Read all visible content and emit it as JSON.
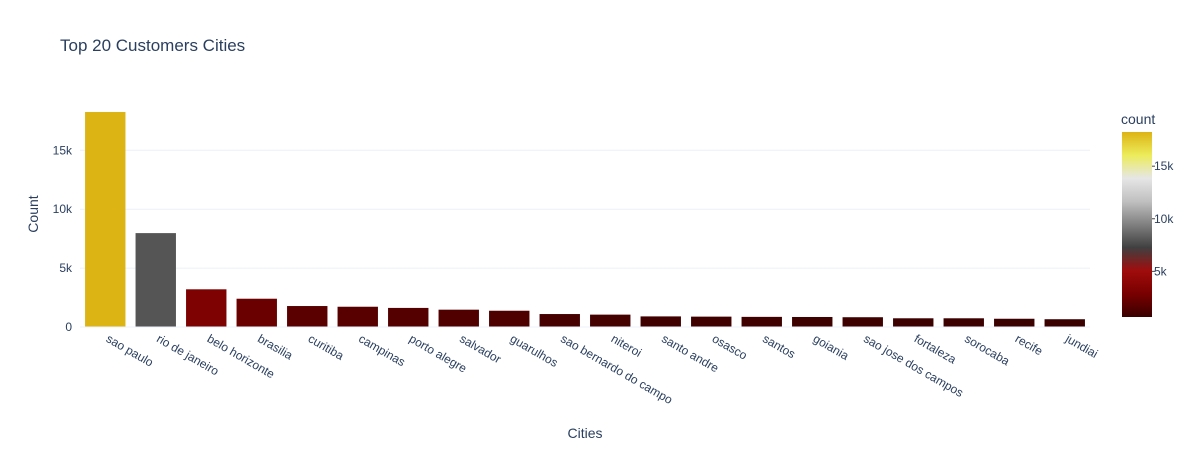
{
  "chart_data": {
    "type": "bar",
    "title": "Top 20 Customers Cities",
    "xlabel": "Cities",
    "ylabel": "Count",
    "categories": [
      "sao paulo",
      "rio de janeiro",
      "belo horizonte",
      "brasilia",
      "curitiba",
      "campinas",
      "porto alegre",
      "salvador",
      "guarulhos",
      "sao bernardo do campo",
      "niteroi",
      "santo andre",
      "osasco",
      "santos",
      "goiania",
      "sao jose dos campos",
      "fortaleza",
      "sorocaba",
      "recife",
      "jundiai"
    ],
    "values": [
      18250,
      7970,
      3200,
      2400,
      1780,
      1720,
      1620,
      1470,
      1380,
      1100,
      1050,
      900,
      880,
      860,
      850,
      830,
      740,
      740,
      700,
      660
    ],
    "ylim": [
      0,
      18250
    ],
    "y_ticks": [
      0,
      5000,
      10000,
      15000
    ],
    "y_tick_labels": [
      "0",
      "5k",
      "10k",
      "15k"
    ],
    "grid": true,
    "colorbar": {
      "title": "count",
      "range": [
        660,
        18250
      ],
      "ticks": [
        5000,
        10000,
        15000
      ],
      "tick_labels": [
        "5k",
        "10k",
        "15k"
      ],
      "colorscale": [
        "#3a0000",
        "#780000",
        "#a00c0c",
        "#404040",
        "#808080",
        "#c0c0c0",
        "#e6e6e6",
        "#ecec5a",
        "#dcb414"
      ]
    },
    "colors": {
      "text": "#2a3f5f",
      "grid": "#ebf0f8",
      "background": "#ffffff"
    }
  }
}
